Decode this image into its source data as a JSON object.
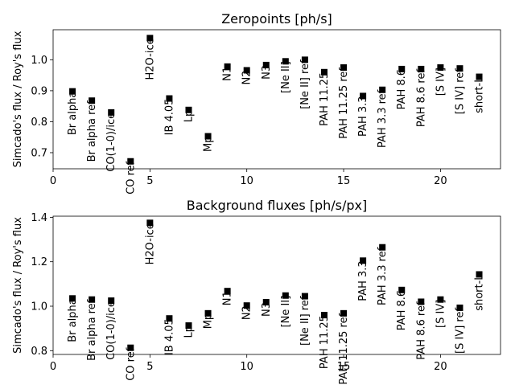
{
  "chart_data": [
    {
      "type": "scatter",
      "title": "Zeropoints [ph/s]",
      "ylabel": "Simcado's flux / Roy's flux",
      "xlabel": "",
      "xlim": [
        0,
        23.1
      ],
      "ylim": [
        0.648,
        1.097
      ],
      "xticks": [
        0,
        5,
        10,
        15,
        20
      ],
      "yticks": [
        0.7,
        0.8,
        0.9,
        1.0
      ],
      "ytick_labels": [
        "0.7",
        "0.8",
        "0.9",
        "1.0"
      ],
      "grid": false,
      "marker_color": "#000000",
      "points": [
        {
          "x": 1,
          "y": 0.898,
          "label": "Br alpha"
        },
        {
          "x": 2,
          "y": 0.868,
          "label": "Br alpha ref"
        },
        {
          "x": 3,
          "y": 0.83,
          "label": "CO(1-0)/ice"
        },
        {
          "x": 4,
          "y": 0.672,
          "label": "CO ref"
        },
        {
          "x": 5,
          "y": 1.07,
          "label": "H2O-ice"
        },
        {
          "x": 6,
          "y": 0.875,
          "label": "IB 4.05"
        },
        {
          "x": 7,
          "y": 0.838,
          "label": "Lp"
        },
        {
          "x": 8,
          "y": 0.753,
          "label": "Mp"
        },
        {
          "x": 9,
          "y": 0.978,
          "label": "N1"
        },
        {
          "x": 10,
          "y": 0.966,
          "label": "N2"
        },
        {
          "x": 11,
          "y": 0.983,
          "label": "N3"
        },
        {
          "x": 12,
          "y": 0.995,
          "label": "[Ne II]"
        },
        {
          "x": 13,
          "y": 1.0,
          "label": "[Ne II] ref"
        },
        {
          "x": 14,
          "y": 0.96,
          "label": "PAH 11.25"
        },
        {
          "x": 15,
          "y": 0.975,
          "label": "PAH 11.25 ref"
        },
        {
          "x": 16,
          "y": 0.883,
          "label": "PAH 3.3"
        },
        {
          "x": 17,
          "y": 0.903,
          "label": "PAH 3.3 ref"
        },
        {
          "x": 18,
          "y": 0.97,
          "label": "PAH 8.6"
        },
        {
          "x": 19,
          "y": 0.97,
          "label": "PAH 8.6 ref"
        },
        {
          "x": 20,
          "y": 0.975,
          "label": "[S IV]"
        },
        {
          "x": 21,
          "y": 0.972,
          "label": "[S IV] ref"
        },
        {
          "x": 22,
          "y": 0.945,
          "label": "short-L"
        }
      ]
    },
    {
      "type": "scatter",
      "title": "Background fluxes [ph/s/px]",
      "ylabel": "Simcado's flux / Roy's flux",
      "xlabel": "",
      "xlim": [
        0,
        23.1
      ],
      "ylim": [
        0.783,
        1.405
      ],
      "xticks": [
        0,
        5,
        10,
        15,
        20
      ],
      "yticks": [
        0.8,
        1.0,
        1.2,
        1.4
      ],
      "ytick_labels": [
        "0.8",
        "1.0",
        "1.2",
        "1.4"
      ],
      "grid": false,
      "marker_color": "#000000",
      "points": [
        {
          "x": 1,
          "y": 1.035,
          "label": "Br alpha"
        },
        {
          "x": 2,
          "y": 1.03,
          "label": "Br alpha ref"
        },
        {
          "x": 3,
          "y": 1.025,
          "label": "CO(1-0)/ice"
        },
        {
          "x": 4,
          "y": 0.813,
          "label": "CO ref"
        },
        {
          "x": 5,
          "y": 1.375,
          "label": "H2O-ice"
        },
        {
          "x": 6,
          "y": 0.945,
          "label": "IB 4.05"
        },
        {
          "x": 7,
          "y": 0.913,
          "label": "Lp"
        },
        {
          "x": 8,
          "y": 0.968,
          "label": "Mp"
        },
        {
          "x": 9,
          "y": 1.068,
          "label": "N1"
        },
        {
          "x": 10,
          "y": 1.003,
          "label": "N2"
        },
        {
          "x": 11,
          "y": 1.018,
          "label": "N3"
        },
        {
          "x": 12,
          "y": 1.048,
          "label": "[Ne II]"
        },
        {
          "x": 13,
          "y": 1.045,
          "label": "[Ne II] ref"
        },
        {
          "x": 14,
          "y": 0.96,
          "label": "PAH 11.25"
        },
        {
          "x": 15,
          "y": 0.968,
          "label": "PAH 11.25 ref"
        },
        {
          "x": 16,
          "y": 1.205,
          "label": "PAH 3.3"
        },
        {
          "x": 17,
          "y": 1.265,
          "label": "PAH 3.3 ref"
        },
        {
          "x": 18,
          "y": 1.073,
          "label": "PAH 8.6"
        },
        {
          "x": 19,
          "y": 1.02,
          "label": "PAH 8.6 ref"
        },
        {
          "x": 20,
          "y": 1.03,
          "label": "[S IV]"
        },
        {
          "x": 21,
          "y": 0.993,
          "label": "[S IV] ref"
        },
        {
          "x": 22,
          "y": 1.143,
          "label": "short-L"
        }
      ]
    }
  ]
}
